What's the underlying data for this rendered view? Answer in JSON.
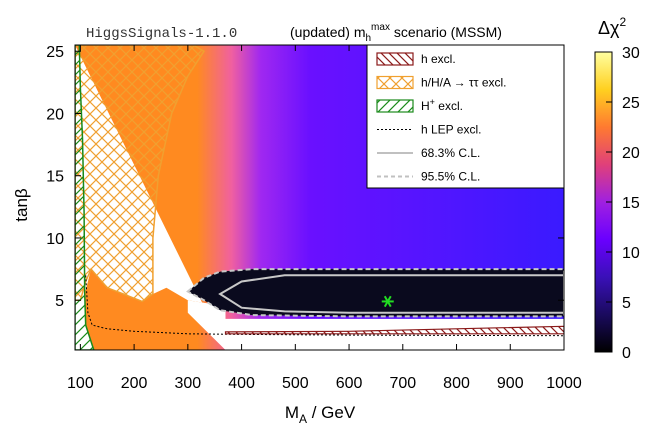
{
  "chart_data": {
    "type": "heatmap",
    "version_label": "HiggsSignals-1.1.0",
    "title_main": "(updated) m",
    "title_sub": "h",
    "title_sup": "max",
    "title_tail": " scenario (MSSM)",
    "xlabel": "M",
    "xlabel_sub": "A",
    "xlabel_tail": " / GeV",
    "ylabel": "tanβ",
    "xlim": [
      90,
      1000
    ],
    "ylim": [
      1,
      25.5
    ],
    "x_ticks": [
      100,
      200,
      300,
      400,
      500,
      600,
      700,
      800,
      900,
      1000
    ],
    "y_ticks": [
      5,
      10,
      15,
      20,
      25
    ],
    "colorbar": {
      "label": "Δχ",
      "label_sup": "2",
      "range": [
        0,
        30
      ],
      "ticks": [
        0,
        5,
        10,
        15,
        20,
        25,
        30
      ],
      "colors": [
        "#000000",
        "#1a0a5e",
        "#3a10b8",
        "#6a00ff",
        "#a020e0",
        "#e0407a",
        "#ff7a30",
        "#ffd020",
        "#ffffa0"
      ]
    },
    "best_fit": {
      "x": 672,
      "y": 4.9,
      "marker": "green-star"
    },
    "legend": {
      "position": "top-right",
      "entries": [
        {
          "label": "h excl.",
          "style": "hatch",
          "color": "#8b1a1a"
        },
        {
          "label": "h/H/A → ττ excl.",
          "style": "crosshatch",
          "color": "#f0a030"
        },
        {
          "label": "H",
          "label_sup": "+",
          "label_tail": " excl.",
          "style": "hatch",
          "color": "#1a8a1a"
        },
        {
          "label": "h LEP excl.",
          "style": "dotted",
          "color": "#000000"
        },
        {
          "label": "68.3% C.L.",
          "style": "solid",
          "color": "#c0c0c0"
        },
        {
          "label": "95.5% C.L.",
          "style": "dashed",
          "color": "#c0c0c0"
        }
      ]
    },
    "regions": {
      "htautau_excl_boundary": [
        [
          90,
          25.5
        ],
        [
          310,
          25.5
        ],
        [
          330,
          25
        ],
        [
          300,
          23
        ],
        [
          270,
          20
        ],
        [
          245,
          15
        ],
        [
          235,
          10
        ],
        [
          235,
          5.5
        ],
        [
          215,
          4.9
        ],
        [
          180,
          5.5
        ],
        [
          150,
          6
        ],
        [
          120,
          7.5
        ],
        [
          110,
          6.5
        ],
        [
          100,
          5
        ],
        [
          90,
          5
        ]
      ],
      "hplus_excl_boundary": [
        [
          90,
          25.5
        ],
        [
          98,
          25.5
        ],
        [
          100,
          22
        ],
        [
          104,
          18
        ],
        [
          107,
          12
        ],
        [
          108,
          5.5
        ],
        [
          110,
          3
        ],
        [
          125,
          1
        ],
        [
          90,
          1
        ]
      ],
      "h_lep_excl_line": [
        [
          110,
          7
        ],
        [
          114,
          4
        ],
        [
          122,
          3
        ],
        [
          150,
          2.7
        ],
        [
          200,
          2.5
        ],
        [
          300,
          2.3
        ],
        [
          400,
          2.25
        ],
        [
          600,
          2.2
        ],
        [
          1000,
          2.15
        ]
      ],
      "h_excl_band": [
        [
          370,
          2.45
        ],
        [
          600,
          2.5
        ],
        [
          1000,
          2.9
        ],
        [
          1000,
          2.3
        ],
        [
          600,
          2.3
        ],
        [
          370,
          2.3
        ]
      ],
      "cl95_boundary": [
        [
          300,
          5.7
        ],
        [
          330,
          6.8
        ],
        [
          360,
          7.3
        ],
        [
          420,
          7.5
        ],
        [
          600,
          7.5
        ],
        [
          1000,
          7.5
        ],
        [
          1000,
          3.7
        ],
        [
          600,
          3.7
        ],
        [
          420,
          3.8
        ],
        [
          360,
          4.2
        ],
        [
          330,
          5
        ]
      ],
      "cl68_boundary": [
        [
          360,
          5.5
        ],
        [
          400,
          6.5
        ],
        [
          480,
          7.0
        ],
        [
          600,
          7.0
        ],
        [
          1000,
          7.0
        ],
        [
          1000,
          4.0
        ],
        [
          600,
          4.0
        ],
        [
          480,
          4.1
        ],
        [
          400,
          4.4
        ]
      ]
    }
  }
}
